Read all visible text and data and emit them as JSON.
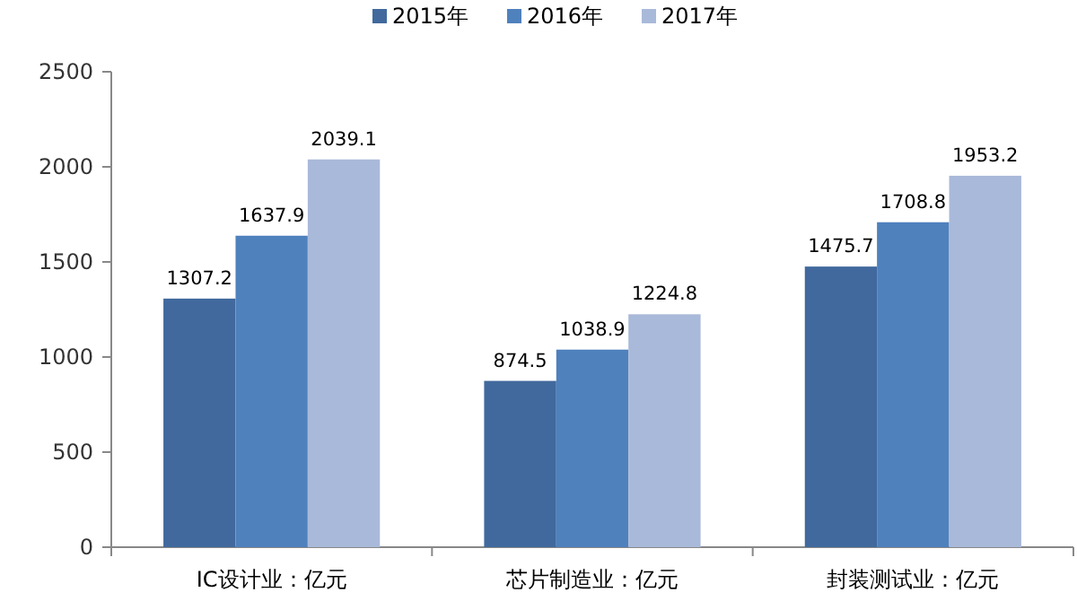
{
  "chart_data": {
    "type": "bar",
    "categories": [
      "IC设计业：亿元",
      "芯片制造业：亿元",
      "封装测试业：亿元"
    ],
    "series": [
      {
        "name": "2015年",
        "color": "#41699d",
        "values": [
          1307.2,
          874.5,
          1475.7
        ]
      },
      {
        "name": "2016年",
        "color": "#4f81bd",
        "values": [
          1637.9,
          1038.9,
          1708.8
        ]
      },
      {
        "name": "2017年",
        "color": "#a9b9d9",
        "values": [
          2039.1,
          1224.8,
          1953.2
        ]
      }
    ],
    "ylim": [
      0,
      2500
    ],
    "yticks": [
      0,
      500,
      1000,
      1500,
      2000,
      2500
    ],
    "data_labels": true,
    "legend": "top"
  }
}
